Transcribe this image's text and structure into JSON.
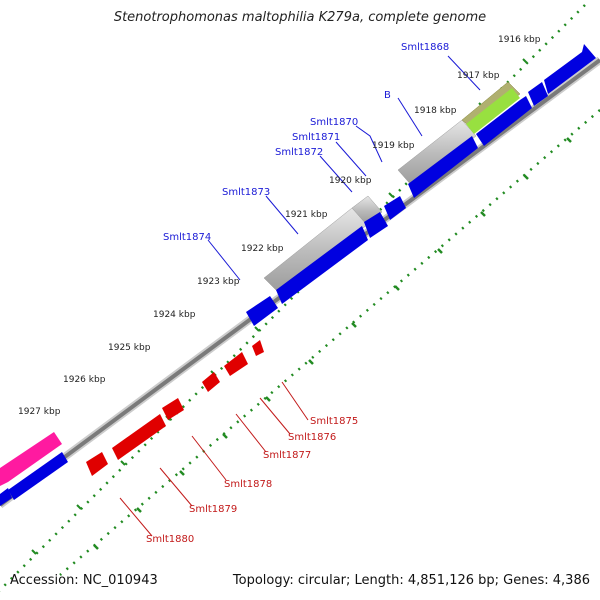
{
  "title": "Stenotrophomonas maltophilia K279a, complete genome",
  "footer": {
    "accession": "Accession: NC_010943",
    "summary": "Topology: circular; Length: 4,851,126 bp; Genes: 4,386"
  },
  "ticks": [
    "1916 kbp",
    "1917 kbp",
    "1918 kbp",
    "1919 kbp",
    "1920 kbp",
    "1921 kbp",
    "1922 kbp",
    "1923 kbp",
    "1924 kbp",
    "1925 kbp",
    "1926 kbp",
    "1927 kbp"
  ],
  "forward_genes": [
    "Smlt1868",
    "B",
    "Smlt1870",
    "Smlt1871",
    "Smlt1872",
    "Smlt1873",
    "Smlt1874"
  ],
  "reverse_genes": [
    "Smlt1875",
    "Smlt1876",
    "Smlt1877",
    "Smlt1878",
    "Smlt1879",
    "Smlt1880"
  ],
  "colors": {
    "forward_cds": "#0000e0",
    "reverse_cds": "#e00000",
    "grey_feature": "#b4b4b4",
    "green_feature": "#98e040",
    "pink_feature": "#ff1aa0",
    "backbone": "#808080",
    "tick": "#228b22",
    "label_forward": "#1a1ad6",
    "label_reverse": "#c21a1a"
  }
}
